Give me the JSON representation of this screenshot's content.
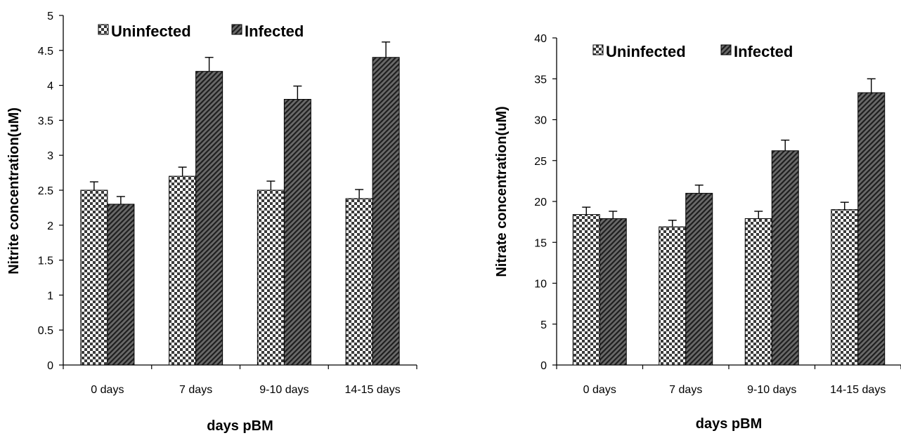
{
  "chart_data": [
    {
      "type": "bar",
      "categories": [
        "0 days",
        "7 days",
        "9-10 days",
        "14-15 days"
      ],
      "series": [
        {
          "name": "Uninfected",
          "values": [
            2.5,
            2.7,
            2.5,
            2.38
          ],
          "errors": [
            0.12,
            0.13,
            0.13,
            0.13
          ]
        },
        {
          "name": "Infected",
          "values": [
            2.3,
            4.2,
            3.8,
            4.4
          ],
          "errors": [
            0.11,
            0.2,
            0.19,
            0.22
          ]
        }
      ],
      "xlabel": "days pBM",
      "ylabel": "Nitrite concentration(uM)",
      "ylim": [
        0,
        5
      ],
      "yticks": [
        "0",
        "0.5",
        "1",
        "1.5",
        "2",
        "2.5",
        "3",
        "3.5",
        "4",
        "4.5",
        "5"
      ],
      "legend": "top-left",
      "grid": false
    },
    {
      "type": "bar",
      "categories": [
        "0 days",
        "7 days",
        "9-10 days",
        "14-15 days"
      ],
      "series": [
        {
          "name": "Uninfected",
          "values": [
            18.4,
            16.9,
            17.9,
            19.0
          ],
          "errors": [
            0.9,
            0.8,
            0.9,
            0.9
          ]
        },
        {
          "name": "Infected",
          "values": [
            17.9,
            21.0,
            26.2,
            33.3
          ],
          "errors": [
            0.9,
            1.0,
            1.3,
            1.7
          ]
        }
      ],
      "xlabel": "days pBM",
      "ylabel": "Nitrate concentration(uM)",
      "ylim": [
        0,
        40
      ],
      "yticks": [
        "0",
        "5",
        "10",
        "15",
        "20",
        "25",
        "30",
        "35",
        "40"
      ],
      "legend": "top-left",
      "grid": false
    }
  ],
  "colors": {
    "uninfected_light": "#ffffff",
    "uninfected_dark": "#444444",
    "infected_fill": "#595959",
    "infected_stripe": "#222222",
    "axis": "#000000"
  }
}
